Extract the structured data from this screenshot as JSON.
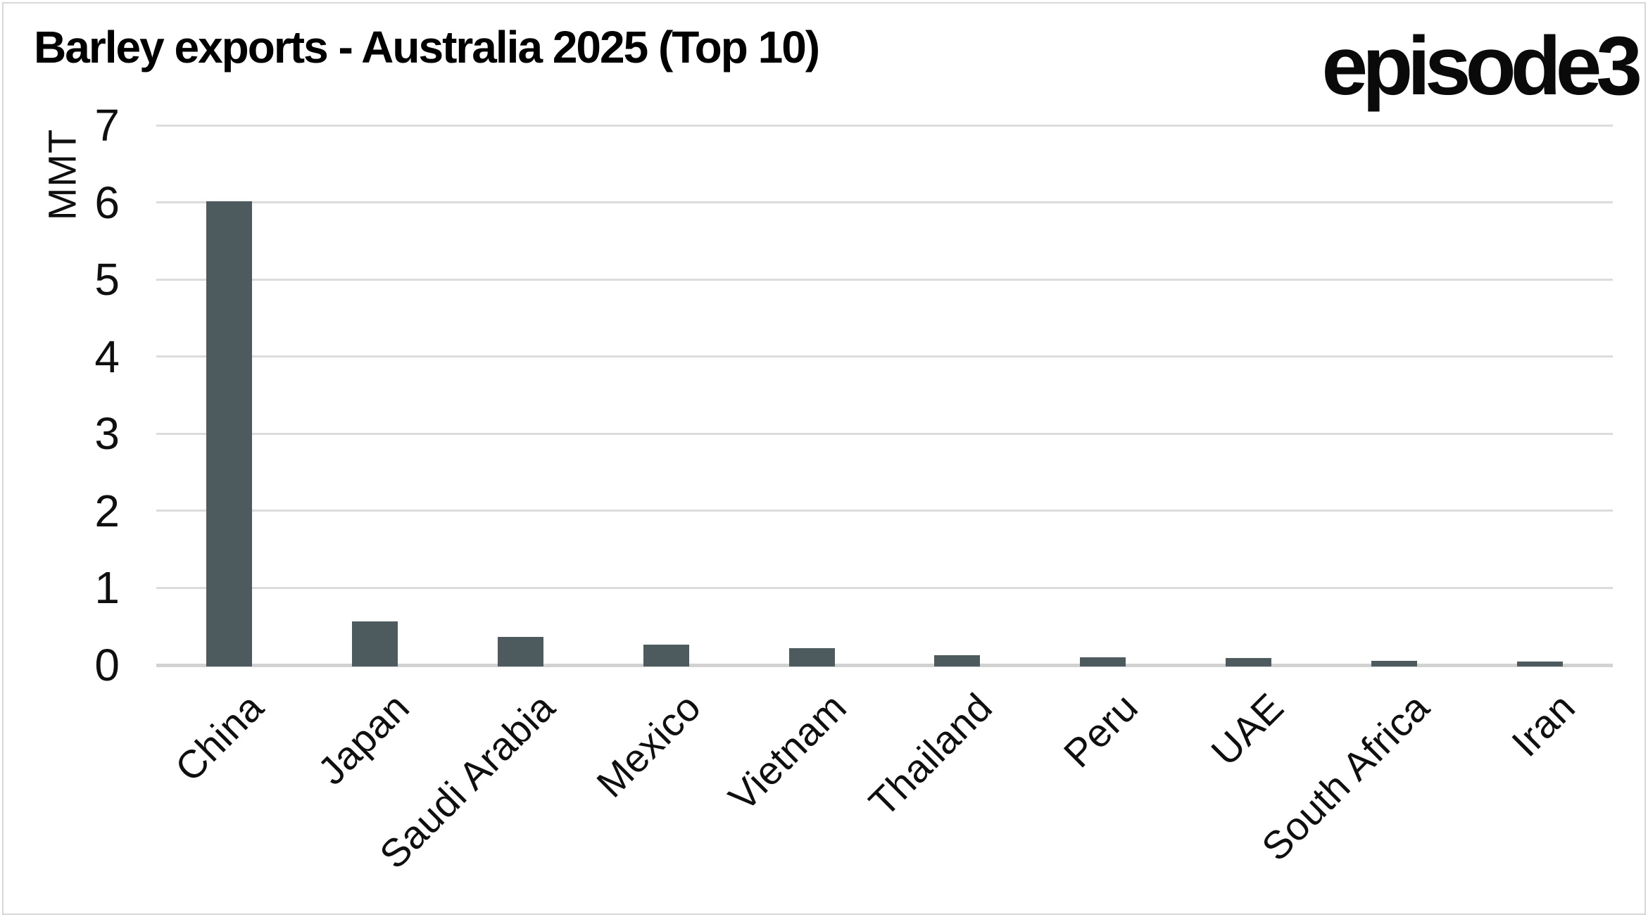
{
  "title": "Barley exports - Australia 2025 (Top 10)",
  "logo": "episode3",
  "chart_data": {
    "type": "bar",
    "title": "Barley exports - Australia 2025 (Top 10)",
    "xlabel": "",
    "ylabel": "MMT",
    "categories": [
      "China",
      "Japan",
      "Saudi Arabia",
      "Mexico",
      "Vietnam",
      "Thailand",
      "Peru",
      "UAE",
      "South Africa",
      "Iran"
    ],
    "values": [
      6.03,
      0.58,
      0.38,
      0.28,
      0.24,
      0.15,
      0.12,
      0.11,
      0.07,
      0.06
    ],
    "ylim": [
      0,
      7
    ],
    "yticks": [
      0,
      1,
      2,
      3,
      4,
      5,
      6,
      7
    ],
    "grid": "horizontal",
    "legend": "none",
    "x_tick_rotation_deg": 45
  },
  "colors": {
    "bar": "#4d5b5f",
    "gridline": "#dcdcdc",
    "baseline": "#d2d2d2",
    "frame": "#d7d7d7",
    "text": "#111111",
    "background": "#ffffff"
  }
}
